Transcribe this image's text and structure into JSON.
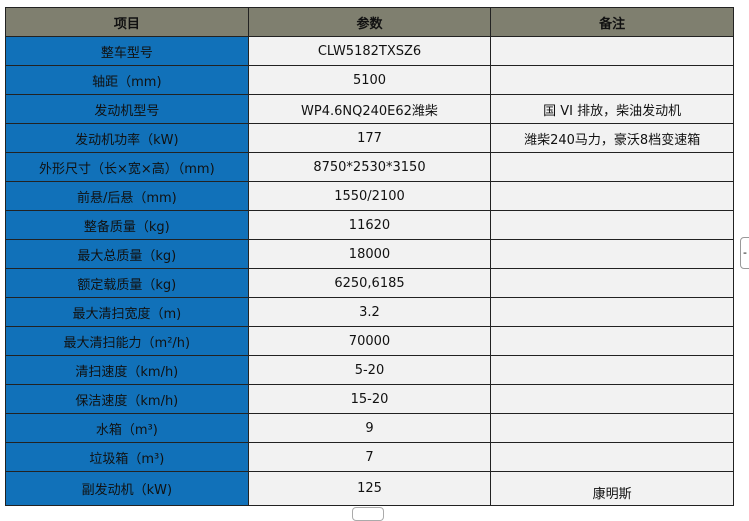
{
  "headers": [
    "项目",
    "参数",
    "备注"
  ],
  "rows": [
    {
      "item": "整车型号",
      "value": "CLW5182TXSZ6",
      "note": ""
    },
    {
      "item": "轴距（mm)",
      "value": "5100",
      "note": ""
    },
    {
      "item": "发动机型号",
      "value": "WP4.6NQ240E62潍柴",
      "note": "国 VI 排放，柴油发动机"
    },
    {
      "item": "发动机功率（kW)",
      "value": "177",
      "note": "潍柴240马力，豪沃8档变速箱"
    },
    {
      "item": "外形尺寸（长×宽×高）（mm)",
      "value": "8750*2530*3150",
      "note": ""
    },
    {
      "item": "前悬/后悬（mm)",
      "value": "1550/2100",
      "note": ""
    },
    {
      "item": "整备质量（kg)",
      "value": "11620",
      "note": ""
    },
    {
      "item": "最大总质量（kg)",
      "value": "18000",
      "note": ""
    },
    {
      "item": "额定载质量（kg)",
      "value": "6250,6185",
      "note": ""
    },
    {
      "item": "最大清扫宽度（m)",
      "value": "3.2",
      "note": ""
    },
    {
      "item": "最大清扫能力（m²/h)",
      "value": "70000",
      "note": ""
    },
    {
      "item": "清扫速度（km/h)",
      "value": "5-20",
      "note": ""
    },
    {
      "item": "保洁速度（km/h)",
      "value": "15-20",
      "note": ""
    },
    {
      "item": "水箱（m³)",
      "value": "9",
      "note": ""
    },
    {
      "item": "垃圾箱（m³)",
      "value": "7",
      "note": ""
    },
    {
      "item": "副发动机（kW)",
      "value": "125",
      "note": "康明斯"
    }
  ],
  "side_button": "-"
}
